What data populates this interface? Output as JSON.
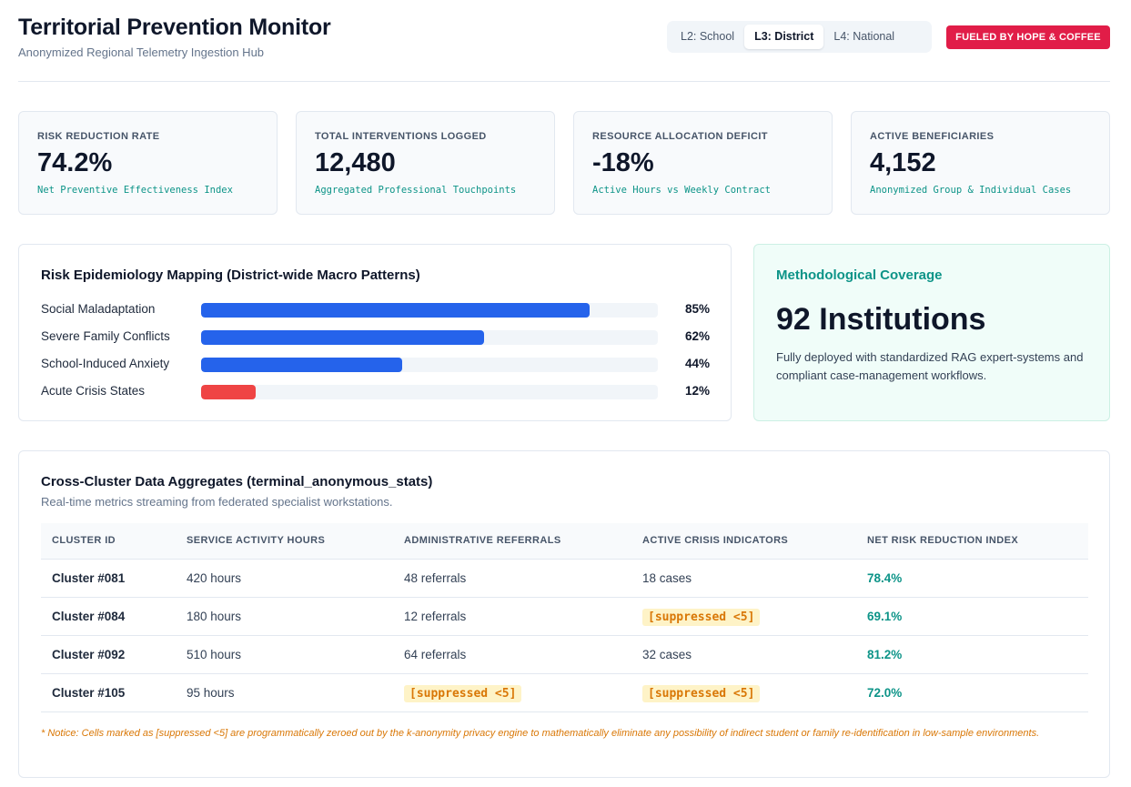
{
  "header": {
    "title": "Territorial Prevention Monitor",
    "subtitle": "Anonymized Regional Telemetry Ingestion Hub",
    "levels": [
      {
        "label": "L2: School",
        "active": false
      },
      {
        "label": "L3: District",
        "active": true
      },
      {
        "label": "L4: National",
        "active": false
      }
    ],
    "badge": "FUELED BY HOPE & COFFEE"
  },
  "kpis": [
    {
      "label": "RISK REDUCTION RATE",
      "value": "74.2%",
      "caption": "Net Preventive Effectiveness Index"
    },
    {
      "label": "TOTAL INTERVENTIONS LOGGED",
      "value": "12,480",
      "caption": "Aggregated Professional Touchpoints"
    },
    {
      "label": "RESOURCE ALLOCATION DEFICIT",
      "value": "-18%",
      "caption": "Active Hours vs Weekly Contract"
    },
    {
      "label": "ACTIVE BENEFICIARIES",
      "value": "4,152",
      "caption": "Anonymized Group & Individual Cases"
    }
  ],
  "risk": {
    "title": "Risk Epidemiology Mapping (District-wide Macro Patterns)",
    "items": [
      {
        "label": "Social Maladaptation",
        "value_label": "85%",
        "fraction": 0.85,
        "color": "#2563eb"
      },
      {
        "label": "Severe Family Conflicts",
        "value_label": "62%",
        "fraction": 0.62,
        "color": "#2563eb"
      },
      {
        "label": "School-Induced Anxiety",
        "value_label": "44%",
        "fraction": 0.44,
        "color": "#2563eb"
      },
      {
        "label": "Acute Crisis States",
        "value_label": "12%",
        "fraction": 0.12,
        "color": "#ef4444"
      }
    ]
  },
  "method": {
    "title": "Methodological Coverage",
    "value": "92 Institutions",
    "description": "Fully deployed with standardized RAG expert-systems and compliant case-management workflows."
  },
  "table": {
    "title": "Cross-Cluster Data Aggregates (terminal_anonymous_stats)",
    "subtitle": "Real-time metrics streaming from federated specialist workstations.",
    "columns": [
      "CLUSTER ID",
      "SERVICE ACTIVITY HOURS",
      "ADMINISTRATIVE REFERRALS",
      "ACTIVE CRISIS INDICATORS",
      "NET RISK REDUCTION INDEX"
    ],
    "rows": [
      {
        "cluster": "Cluster #081",
        "hours": "420 hours",
        "referrals": "48 referrals",
        "crisis": "18 cases",
        "index": "78.4%"
      },
      {
        "cluster": "Cluster #084",
        "hours": "180 hours",
        "referrals": "12 referrals",
        "crisis": "[suppressed <5]",
        "index": "69.1%"
      },
      {
        "cluster": "Cluster #092",
        "hours": "510 hours",
        "referrals": "64 referrals",
        "crisis": "32 cases",
        "index": "81.2%"
      },
      {
        "cluster": "Cluster #105",
        "hours": "95 hours",
        "referrals": "[suppressed <5]",
        "crisis": "[suppressed <5]",
        "index": "72.0%"
      }
    ],
    "notice": "* Notice: Cells marked as [suppressed <5] are programmatically zeroed out by the k-anonymity privacy engine to mathematically eliminate any possibility of indirect student or family re-identification in low-sample environments."
  }
}
